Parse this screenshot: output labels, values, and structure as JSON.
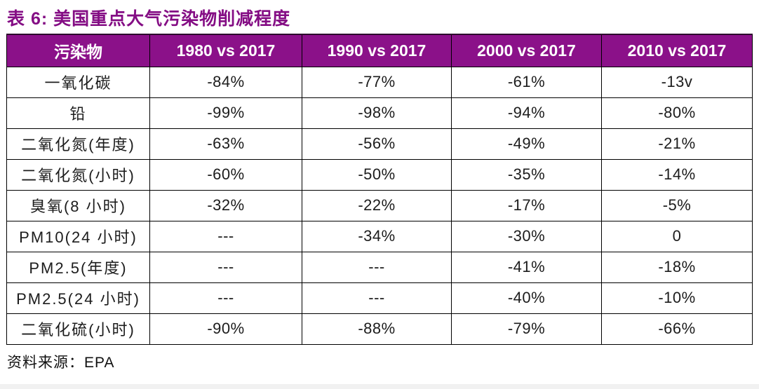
{
  "title": "表 6:  美国重点大气污染物削减程度",
  "table": {
    "headers": [
      "污染物",
      "1980 vs 2017",
      "1990 vs 2017",
      "2000 vs 2017",
      "2010 vs 2017"
    ],
    "rows": [
      [
        "一氧化碳",
        "-84%",
        "-77%",
        "-61%",
        "-13v"
      ],
      [
        "铅",
        "-99%",
        "-98%",
        "-94%",
        "-80%"
      ],
      [
        "二氧化氮(年度)",
        "-63%",
        "-56%",
        "-49%",
        "-21%"
      ],
      [
        "二氧化氮(小时)",
        "-60%",
        "-50%",
        "-35%",
        "-14%"
      ],
      [
        "臭氧(8 小时)",
        "-32%",
        "-22%",
        "-17%",
        "-5%"
      ],
      [
        "PM10(24 小时)",
        "---",
        "-34%",
        "-30%",
        "0"
      ],
      [
        "PM2.5(年度)",
        "---",
        "---",
        "-41%",
        "-18%"
      ],
      [
        "PM2.5(24 小时)",
        "---",
        "---",
        "-40%",
        "-10%"
      ],
      [
        "二氧化硫(小时)",
        "-90%",
        "-88%",
        "-79%",
        "-66%"
      ]
    ]
  },
  "footer": {
    "source_text": "资料来源：EPA"
  },
  "colors": {
    "header_bg": "#8b1189",
    "title_text": "#840d84",
    "cell_border": "#000000",
    "page_edge": "#f1f1f1"
  }
}
